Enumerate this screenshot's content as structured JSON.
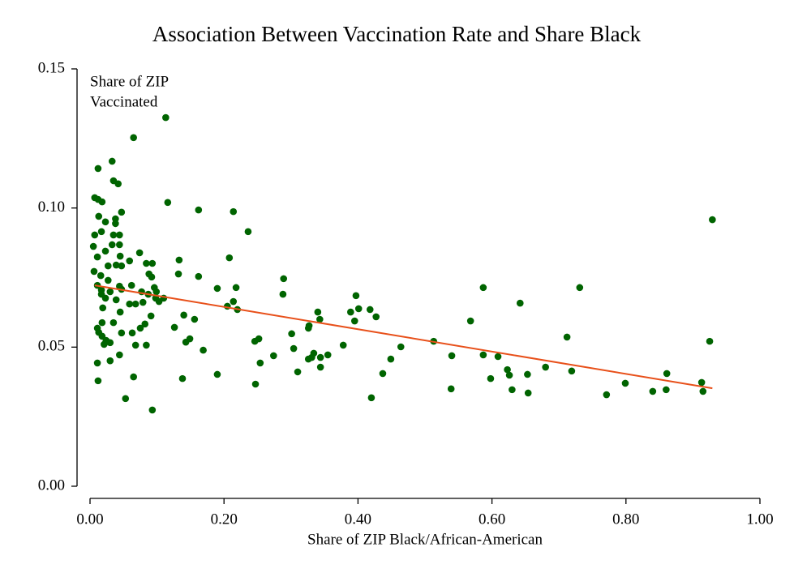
{
  "chart_data": {
    "type": "scatter",
    "title": "Association Between Vaccination Rate and Share Black",
    "xlabel": "Share of ZIP Black/African-American",
    "ylabel": [
      "Share of ZIP",
      "Vaccinated"
    ],
    "xlim": [
      0,
      1
    ],
    "ylim": [
      0,
      0.15
    ],
    "xticks": [
      {
        "value": 0,
        "label": "0.00"
      },
      {
        "value": 0.2,
        "label": "0.20"
      },
      {
        "value": 0.4,
        "label": "0.40"
      },
      {
        "value": 0.6,
        "label": "0.60"
      },
      {
        "value": 0.8,
        "label": "0.80"
      },
      {
        "value": 1,
        "label": "1.00"
      }
    ],
    "yticks": [
      {
        "value": 0,
        "label": "0.00"
      },
      {
        "value": 0.05,
        "label": "0.05"
      },
      {
        "value": 0.1,
        "label": "0.10"
      },
      {
        "value": 0.15,
        "label": "0.15"
      }
    ],
    "grid": false,
    "series": [
      {
        "color": "#006400",
        "x": [
          0.113,
          0.065,
          0.033,
          0.012,
          0.035,
          0.042,
          0.007,
          0.012,
          0.018,
          0.116,
          0.162,
          0.214,
          0.047,
          0.013,
          0.038,
          0.023,
          0.038,
          0.929,
          0.236,
          0.017,
          0.007,
          0.035,
          0.044,
          0.005,
          0.044,
          0.033,
          0.023,
          0.074,
          0.045,
          0.011,
          0.208,
          0.133,
          0.059,
          0.027,
          0.039,
          0.047,
          0.084,
          0.093,
          0.006,
          0.016,
          0.132,
          0.162,
          0.088,
          0.289,
          0.092,
          0.731,
          0.587,
          0.027,
          0.011,
          0.19,
          0.218,
          0.044,
          0.062,
          0.096,
          0.017,
          0.03,
          0.017,
          0.047,
          0.077,
          0.087,
          0.099,
          0.397,
          0.288,
          0.11,
          0.098,
          0.103,
          0.214,
          0.205,
          0.642,
          0.023,
          0.039,
          0.059,
          0.079,
          0.068,
          0.401,
          0.22,
          0.418,
          0.389,
          0.34,
          0.427,
          0.14,
          0.091,
          0.045,
          0.019,
          0.156,
          0.343,
          0.395,
          0.568,
          0.327,
          0.326,
          0.126,
          0.018,
          0.035,
          0.082,
          0.075,
          0.011,
          0.301,
          0.047,
          0.013,
          0.063,
          0.018,
          0.024,
          0.021,
          0.03,
          0.149,
          0.252,
          0.712,
          0.143,
          0.246,
          0.513,
          0.925,
          0.378,
          0.304,
          0.068,
          0.084,
          0.169,
          0.464,
          0.334,
          0.331,
          0.344,
          0.326,
          0.274,
          0.355,
          0.587,
          0.609,
          0.54,
          0.449,
          0.03,
          0.011,
          0.044,
          0.254,
          0.344,
          0.68,
          0.623,
          0.626,
          0.31,
          0.598,
          0.719,
          0.437,
          0.065,
          0.138,
          0.19,
          0.247,
          0.012,
          0.861,
          0.799,
          0.913,
          0.539,
          0.63,
          0.654,
          0.771,
          0.84,
          0.86,
          0.915,
          0.053,
          0.42,
          0.093,
          0.653
        ],
        "values": [
          0.1325,
          0.1253,
          0.1168,
          0.1142,
          0.1098,
          0.1087,
          0.1037,
          0.1031,
          0.1022,
          0.102,
          0.0993,
          0.0987,
          0.0985,
          0.097,
          0.0961,
          0.095,
          0.0944,
          0.0958,
          0.0915,
          0.0915,
          0.0903,
          0.0903,
          0.0903,
          0.0862,
          0.0868,
          0.0868,
          0.0845,
          0.0839,
          0.0827,
          0.0824,
          0.0821,
          0.0813,
          0.081,
          0.0792,
          0.0795,
          0.0792,
          0.0801,
          0.0801,
          0.0772,
          0.0757,
          0.0763,
          0.0754,
          0.0763,
          0.0746,
          0.0752,
          0.0714,
          0.0714,
          0.074,
          0.0722,
          0.0711,
          0.0714,
          0.0719,
          0.0722,
          0.0714,
          0.0705,
          0.0699,
          0.069,
          0.0708,
          0.0699,
          0.069,
          0.0699,
          0.0685,
          0.069,
          0.0676,
          0.0676,
          0.0664,
          0.0664,
          0.0647,
          0.0658,
          0.0676,
          0.067,
          0.0655,
          0.0661,
          0.0655,
          0.0638,
          0.0635,
          0.0635,
          0.0626,
          0.0626,
          0.0609,
          0.0615,
          0.0612,
          0.0626,
          0.0641,
          0.06,
          0.06,
          0.0594,
          0.0594,
          0.0577,
          0.0568,
          0.0571,
          0.0588,
          0.0588,
          0.0583,
          0.0568,
          0.0568,
          0.0548,
          0.0551,
          0.0553,
          0.0551,
          0.0539,
          0.0524,
          0.051,
          0.0516,
          0.053,
          0.053,
          0.0536,
          0.0518,
          0.0521,
          0.0521,
          0.0521,
          0.0507,
          0.0495,
          0.0507,
          0.0507,
          0.0489,
          0.0501,
          0.0478,
          0.0463,
          0.0463,
          0.0457,
          0.0469,
          0.0472,
          0.0472,
          0.0466,
          0.0469,
          0.0457,
          0.0451,
          0.0443,
          0.0472,
          0.0443,
          0.0428,
          0.0428,
          0.0419,
          0.0399,
          0.0411,
          0.0387,
          0.0414,
          0.0405,
          0.0393,
          0.0387,
          0.0402,
          0.0367,
          0.0379,
          0.0405,
          0.037,
          0.0373,
          0.035,
          0.0347,
          0.0335,
          0.0329,
          0.0341,
          0.0347,
          0.0341,
          0.0315,
          0.0318,
          0.0274,
          0.0402
        ]
      },
      {
        "type": "line",
        "color": "#e8501a",
        "x": [
          0.007,
          0.929
        ],
        "values": [
          0.0722,
          0.0352
        ]
      }
    ]
  }
}
